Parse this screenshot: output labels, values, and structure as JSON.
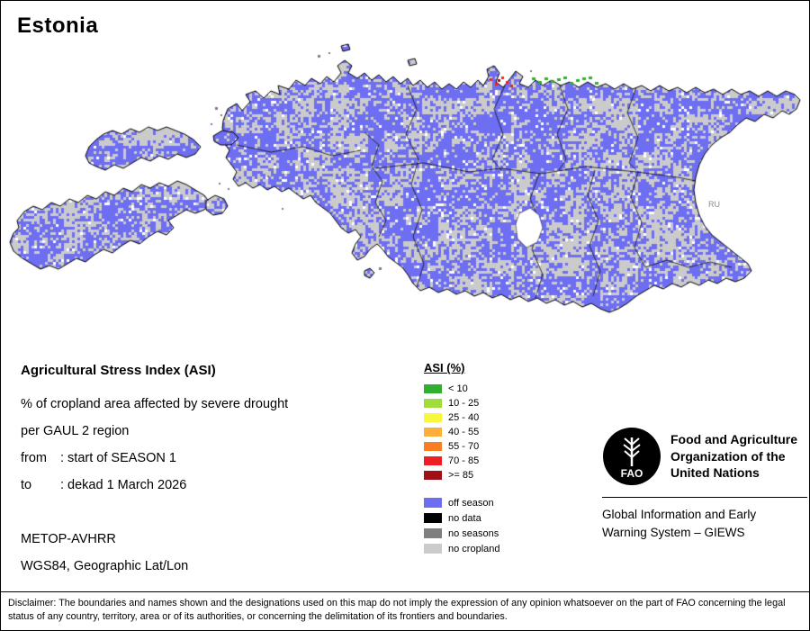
{
  "title": "Estonia",
  "map": {
    "neighbor_label": "RU"
  },
  "info": {
    "heading": "Agricultural Stress Index (ASI)",
    "line1": "% of cropland area affected by severe drought",
    "line2": "per GAUL 2 region",
    "from_label": "from",
    "from_value": ": start of SEASON 1",
    "to_label": "to",
    "to_value": ": dekad 1 March 2026",
    "sensor": "METOP-AVHRR",
    "projection": "WGS84, Geographic Lat/Lon"
  },
  "legend": {
    "title": "ASI (%)",
    "classes": [
      {
        "label": "< 10",
        "color": "#2fae2f"
      },
      {
        "label": "10 - 25",
        "color": "#9fdc3c"
      },
      {
        "label": "25 - 40",
        "color": "#f7f73c"
      },
      {
        "label": "40 - 55",
        "color": "#fdae3b"
      },
      {
        "label": "55 - 70",
        "color": "#f97e24"
      },
      {
        "label": "70 - 85",
        "color": "#ec2024"
      },
      {
        "label": ">= 85",
        "color": "#9f1116"
      }
    ],
    "extras": [
      {
        "label": "off season",
        "color": "#6e6ef2"
      },
      {
        "label": "no data",
        "color": "#000000"
      },
      {
        "label": "no seasons",
        "color": "#7f7f7f"
      },
      {
        "label": "no cropland",
        "color": "#cbcbcb"
      }
    ]
  },
  "org": {
    "logo_text": "FAO",
    "fao_lines": [
      "Food and Agriculture",
      "Organization of the",
      "United Nations"
    ],
    "giews_lines": [
      "Global Information and Early",
      "Warning System – GIEWS"
    ]
  },
  "disclaimer": "Disclaimer: The boundaries and names shown and the designations used on this map do not imply the expression of any opinion whatsoever on the part of FAO concerning the legal status of any country, territory, area or of its authorities, or concerning the delimitation of its frontiers and boundaries."
}
